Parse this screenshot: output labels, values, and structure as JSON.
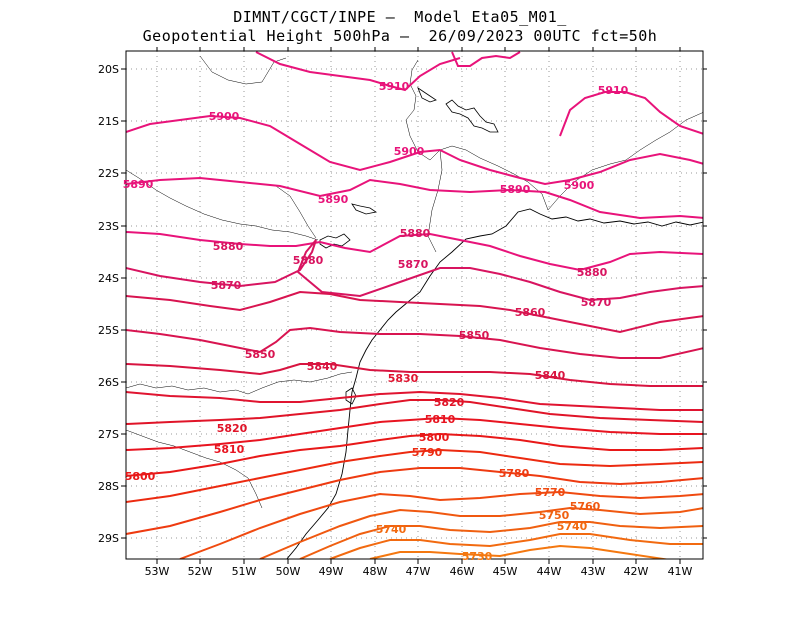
{
  "title": {
    "line1": "DIMNT/CGCT/INPE –  Model Eta05_M01_",
    "line2": "Geopotential Height 500hPa –  26/09/2023 00UTC fct=50h"
  },
  "axes": {
    "lat_labels": [
      "20S",
      "21S",
      "22S",
      "23S",
      "24S",
      "25S",
      "26S",
      "27S",
      "28S",
      "29S"
    ],
    "lon_labels": [
      "53W",
      "52W",
      "51W",
      "50W",
      "49W",
      "48W",
      "47W",
      "46W",
      "45W",
      "44W",
      "43W",
      "42W",
      "41W"
    ]
  },
  "contour_labels": [
    {
      "text": "5910",
      "color": "#e8137a"
    },
    {
      "text": "5910",
      "color": "#e8137a"
    },
    {
      "text": "5900",
      "color": "#e8137a"
    },
    {
      "text": "5900",
      "color": "#e8137a"
    },
    {
      "text": "5900",
      "color": "#e8137a"
    },
    {
      "text": "5890",
      "color": "#e8137a"
    },
    {
      "text": "5890",
      "color": "#e8137a"
    },
    {
      "text": "5890",
      "color": "#e8137a"
    },
    {
      "text": "5880",
      "color": "#d81460"
    },
    {
      "text": "5880",
      "color": "#d81460"
    },
    {
      "text": "5880",
      "color": "#d81460"
    },
    {
      "text": "5880",
      "color": "#d81460"
    },
    {
      "text": "5870",
      "color": "#d81460"
    },
    {
      "text": "5870",
      "color": "#d81460"
    },
    {
      "text": "5870",
      "color": "#d81460"
    },
    {
      "text": "5860",
      "color": "#d81450"
    },
    {
      "text": "5850",
      "color": "#d81450"
    },
    {
      "text": "5850",
      "color": "#d81450"
    },
    {
      "text": "5840",
      "color": "#d81440"
    },
    {
      "text": "5840",
      "color": "#d81440"
    },
    {
      "text": "5830",
      "color": "#e01430"
    },
    {
      "text": "5820",
      "color": "#e01428"
    },
    {
      "text": "5820",
      "color": "#e01428"
    },
    {
      "text": "5810",
      "color": "#e81420"
    },
    {
      "text": "5810",
      "color": "#e81420"
    },
    {
      "text": "5800",
      "color": "#e81818"
    },
    {
      "text": "5800",
      "color": "#e81818"
    },
    {
      "text": "5790",
      "color": "#ec2a10"
    },
    {
      "text": "5780",
      "color": "#ee3a10"
    },
    {
      "text": "5770",
      "color": "#f04a10"
    },
    {
      "text": "5760",
      "color": "#f05810"
    },
    {
      "text": "5750",
      "color": "#f06010"
    },
    {
      "text": "5740",
      "color": "#f26a10"
    },
    {
      "text": "5740",
      "color": "#f26a10"
    },
    {
      "text": "5730",
      "color": "#f47810"
    }
  ]
}
